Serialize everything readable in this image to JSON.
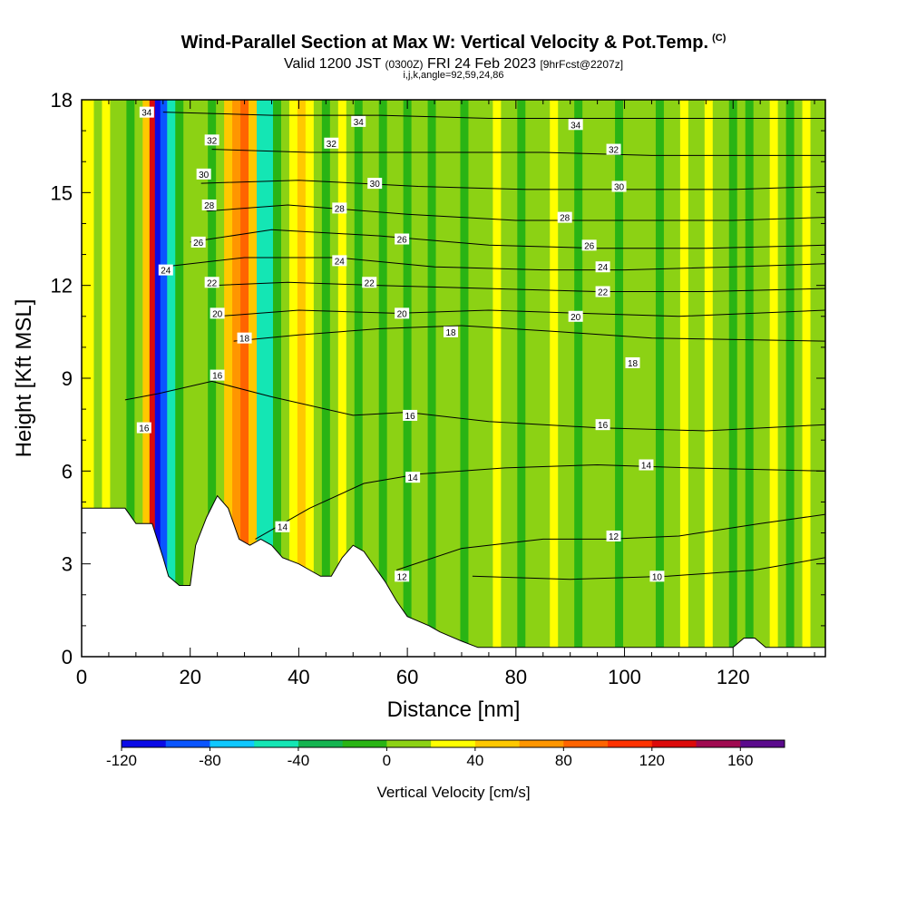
{
  "header": {
    "title": "Wind-Parallel Section at Max W: Vertical Velocity & Pot.Temp.",
    "title_mark": "(C)",
    "valid_prefix": "Valid 1200 JST",
    "valid_zulu": "(0300Z)",
    "valid_date": "FRI 24 Feb 2023",
    "forecast": "[9hrFcst@2207z]",
    "indices": "i,j,k,angle=92,59,24,86"
  },
  "chart_data": {
    "type": "heatmap",
    "xlabel": "Distance [nm]",
    "ylabel": "Height [Kft MSL]",
    "xlim": [
      0,
      137
    ],
    "ylim": [
      0,
      18
    ],
    "x_ticks": [
      0,
      20,
      40,
      60,
      80,
      100,
      120
    ],
    "y_ticks": [
      0,
      3,
      6,
      9,
      12,
      15,
      18
    ],
    "colorbar": {
      "label": "Vertical Velocity [cm/s]",
      "range": [
        -120,
        180
      ],
      "step": 20,
      "tick_labels": [
        "-120",
        "-80",
        "-40",
        "0",
        "40",
        "80",
        "120",
        "160"
      ],
      "tick_values": [
        -120,
        -80,
        -40,
        0,
        40,
        80,
        120,
        160
      ],
      "colors": [
        "#0a0ae6",
        "#0a55ff",
        "#0fc8ff",
        "#14e6b4",
        "#14b450",
        "#29b414",
        "#8cd214",
        "#ffff00",
        "#ffc800",
        "#ff9600",
        "#ff6400",
        "#ff3200",
        "#dc0a0a",
        "#a00a50",
        "#5a0a8c"
      ]
    },
    "w_columns": [
      {
        "x": 1.5,
        "w": 20
      },
      {
        "x": 3,
        "w": 10
      },
      {
        "x": 4.5,
        "w": 20
      },
      {
        "x": 6,
        "w": 5
      },
      {
        "x": 7.5,
        "w": 10
      },
      {
        "x": 9,
        "w": -5
      },
      {
        "x": 10.5,
        "w": 5
      },
      {
        "x": 12,
        "w": 40
      },
      {
        "x": 13,
        "w": 125
      },
      {
        "x": 14,
        "w": -115
      },
      {
        "x": 15,
        "w": -90
      },
      {
        "x": 16.5,
        "w": -45
      },
      {
        "x": 18,
        "w": -5
      },
      {
        "x": 19.5,
        "w": 5
      },
      {
        "x": 21,
        "w": 15
      },
      {
        "x": 22.5,
        "w": 5
      },
      {
        "x": 24,
        "w": -10
      },
      {
        "x": 25.5,
        "w": 10
      },
      {
        "x": 27,
        "w": 45
      },
      {
        "x": 28.5,
        "w": 75
      },
      {
        "x": 30,
        "w": 95
      },
      {
        "x": 31.5,
        "w": 50
      },
      {
        "x": 33,
        "w": -55
      },
      {
        "x": 34.5,
        "w": -45
      },
      {
        "x": 36,
        "w": -10
      },
      {
        "x": 37.5,
        "w": 5
      },
      {
        "x": 39,
        "w": 25
      },
      {
        "x": 40.5,
        "w": 45
      },
      {
        "x": 42,
        "w": 25
      },
      {
        "x": 43.5,
        "w": 5
      },
      {
        "x": 45,
        "w": -5
      },
      {
        "x": 46.5,
        "w": 10
      },
      {
        "x": 48,
        "w": 25
      },
      {
        "x": 49.5,
        "w": 5
      },
      {
        "x": 51,
        "w": -5
      },
      {
        "x": 52.5,
        "w": 10
      },
      {
        "x": 54,
        "w": 5
      },
      {
        "x": 55.5,
        "w": -10
      },
      {
        "x": 57,
        "w": 5
      },
      {
        "x": 58.5,
        "w": 10
      },
      {
        "x": 60,
        "w": -5
      },
      {
        "x": 61.5,
        "w": 5
      },
      {
        "x": 63,
        "w": 10
      },
      {
        "x": 64.5,
        "w": -5
      },
      {
        "x": 66,
        "w": 5
      },
      {
        "x": 67.5,
        "w": 10
      },
      {
        "x": 69,
        "w": 5
      },
      {
        "x": 70.5,
        "w": -5
      },
      {
        "x": 72,
        "w": 5
      },
      {
        "x": 73.5,
        "w": 10
      },
      {
        "x": 75,
        "w": 5
      },
      {
        "x": 76.5,
        "w": 25
      },
      {
        "x": 78,
        "w": 10
      },
      {
        "x": 79.5,
        "w": 5
      },
      {
        "x": 81,
        "w": -5
      },
      {
        "x": 82.5,
        "w": 5
      },
      {
        "x": 84,
        "w": 10
      },
      {
        "x": 85.5,
        "w": 5
      },
      {
        "x": 87,
        "w": 25
      },
      {
        "x": 88.5,
        "w": 10
      },
      {
        "x": 90,
        "w": 5
      },
      {
        "x": 91.5,
        "w": -5
      },
      {
        "x": 93,
        "w": 5
      },
      {
        "x": 94.5,
        "w": 10
      },
      {
        "x": 96,
        "w": 5
      },
      {
        "x": 97.5,
        "w": 5
      },
      {
        "x": 99,
        "w": -5
      },
      {
        "x": 100.5,
        "w": 10
      },
      {
        "x": 102,
        "w": 5
      },
      {
        "x": 103.5,
        "w": 5
      },
      {
        "x": 105,
        "w": 10
      },
      {
        "x": 106.5,
        "w": -5
      },
      {
        "x": 108,
        "w": 5
      },
      {
        "x": 109.5,
        "w": 10
      },
      {
        "x": 111,
        "w": 25
      },
      {
        "x": 112.5,
        "w": 10
      },
      {
        "x": 114,
        "w": 5
      },
      {
        "x": 115.5,
        "w": 25
      },
      {
        "x": 117,
        "w": 10
      },
      {
        "x": 118.5,
        "w": 5
      },
      {
        "x": 120,
        "w": -5
      },
      {
        "x": 121.5,
        "w": 5
      },
      {
        "x": 123,
        "w": -20
      },
      {
        "x": 124.5,
        "w": 5
      },
      {
        "x": 126,
        "w": 10
      },
      {
        "x": 127.5,
        "w": 25
      },
      {
        "x": 129,
        "w": 5
      },
      {
        "x": 130.5,
        "w": -5
      },
      {
        "x": 132,
        "w": 10
      },
      {
        "x": 133.5,
        "w": 25
      },
      {
        "x": 135,
        "w": 5
      },
      {
        "x": 136.5,
        "w": 10
      }
    ],
    "terrain": [
      [
        0,
        4.8
      ],
      [
        8,
        4.8
      ],
      [
        10,
        4.3
      ],
      [
        13,
        4.3
      ],
      [
        15,
        3.2
      ],
      [
        16,
        2.6
      ],
      [
        18,
        2.3
      ],
      [
        20,
        2.3
      ],
      [
        21,
        3.6
      ],
      [
        23,
        4.5
      ],
      [
        25,
        5.2
      ],
      [
        27,
        4.8
      ],
      [
        29,
        3.8
      ],
      [
        31,
        3.6
      ],
      [
        33,
        3.8
      ],
      [
        35,
        3.6
      ],
      [
        37,
        3.2
      ],
      [
        40,
        3.0
      ],
      [
        42,
        2.8
      ],
      [
        44,
        2.6
      ],
      [
        46,
        2.6
      ],
      [
        48,
        3.2
      ],
      [
        50,
        3.6
      ],
      [
        52,
        3.4
      ],
      [
        54,
        2.9
      ],
      [
        56,
        2.4
      ],
      [
        58,
        1.8
      ],
      [
        60,
        1.3
      ],
      [
        64,
        1.0
      ],
      [
        66,
        0.8
      ],
      [
        70,
        0.5
      ],
      [
        73,
        0.3
      ],
      [
        120,
        0.3
      ],
      [
        122,
        0.6
      ],
      [
        124,
        0.6
      ],
      [
        126,
        0.3
      ],
      [
        137,
        0.3
      ]
    ],
    "isentropes": [
      {
        "theta": 10,
        "y_at": [
          [
            72,
            2.6
          ],
          [
            90,
            2.5
          ],
          [
            108,
            2.6
          ],
          [
            124,
            2.8
          ],
          [
            137,
            3.2
          ]
        ]
      },
      {
        "theta": 12,
        "y_at": [
          [
            58,
            2.8
          ],
          [
            70,
            3.5
          ],
          [
            85,
            3.8
          ],
          [
            97,
            3.8
          ],
          [
            110,
            3.9
          ],
          [
            125,
            4.3
          ],
          [
            137,
            4.6
          ]
        ]
      },
      {
        "theta": 14,
        "y_at": [
          [
            32,
            3.8
          ],
          [
            42,
            4.8
          ],
          [
            52,
            5.6
          ],
          [
            62,
            5.9
          ],
          [
            78,
            6.1
          ],
          [
            95,
            6.2
          ],
          [
            112,
            6.1
          ],
          [
            137,
            6.0
          ]
        ]
      },
      {
        "theta": 16,
        "y_at": [
          [
            8,
            8.3
          ],
          [
            14,
            8.5
          ],
          [
            24,
            8.9
          ],
          [
            35,
            8.4
          ],
          [
            50,
            7.8
          ],
          [
            60,
            7.9
          ],
          [
            75,
            7.6
          ],
          [
            95,
            7.4
          ],
          [
            115,
            7.3
          ],
          [
            137,
            7.5
          ]
        ]
      },
      {
        "theta": 18,
        "y_at": [
          [
            28,
            10.2
          ],
          [
            40,
            10.4
          ],
          [
            55,
            10.6
          ],
          [
            70,
            10.7
          ],
          [
            88,
            10.5
          ],
          [
            105,
            10.3
          ],
          [
            137,
            10.2
          ]
        ]
      },
      {
        "theta": 20,
        "y_at": [
          [
            25,
            11.0
          ],
          [
            40,
            11.2
          ],
          [
            58,
            11.1
          ],
          [
            75,
            11.2
          ],
          [
            92,
            11.1
          ],
          [
            110,
            11.0
          ],
          [
            137,
            11.2
          ]
        ]
      },
      {
        "theta": 22,
        "y_at": [
          [
            24,
            12.0
          ],
          [
            38,
            12.1
          ],
          [
            55,
            12.0
          ],
          [
            75,
            11.9
          ],
          [
            95,
            11.8
          ],
          [
            115,
            11.8
          ],
          [
            137,
            11.9
          ]
        ]
      },
      {
        "theta": 24,
        "y_at": [
          [
            15,
            12.6
          ],
          [
            30,
            12.9
          ],
          [
            47,
            12.9
          ],
          [
            65,
            12.6
          ],
          [
            85,
            12.5
          ],
          [
            100,
            12.5
          ],
          [
            120,
            12.6
          ],
          [
            137,
            12.7
          ]
        ]
      },
      {
        "theta": 26,
        "y_at": [
          [
            20,
            13.4
          ],
          [
            35,
            13.8
          ],
          [
            55,
            13.6
          ],
          [
            75,
            13.3
          ],
          [
            95,
            13.2
          ],
          [
            115,
            13.2
          ],
          [
            137,
            13.3
          ]
        ]
      },
      {
        "theta": 28,
        "y_at": [
          [
            23,
            14.4
          ],
          [
            38,
            14.6
          ],
          [
            60,
            14.3
          ],
          [
            80,
            14.1
          ],
          [
            100,
            14.1
          ],
          [
            120,
            14.1
          ],
          [
            137,
            14.2
          ]
        ]
      },
      {
        "theta": 30,
        "y_at": [
          [
            22,
            15.3
          ],
          [
            40,
            15.4
          ],
          [
            62,
            15.2
          ],
          [
            82,
            15.1
          ],
          [
            102,
            15.1
          ],
          [
            120,
            15.1
          ],
          [
            137,
            15.2
          ]
        ]
      },
      {
        "theta": 32,
        "y_at": [
          [
            24,
            16.4
          ],
          [
            42,
            16.3
          ],
          [
            65,
            16.3
          ],
          [
            85,
            16.3
          ],
          [
            105,
            16.2
          ],
          [
            125,
            16.2
          ],
          [
            137,
            16.2
          ]
        ]
      },
      {
        "theta": 34,
        "y_at": [
          [
            15,
            17.6
          ],
          [
            35,
            17.5
          ],
          [
            55,
            17.5
          ],
          [
            75,
            17.4
          ],
          [
            95,
            17.4
          ],
          [
            115,
            17.4
          ],
          [
            137,
            17.4
          ]
        ]
      }
    ],
    "contour_labels": [
      {
        "text": "34",
        "x": 12,
        "y": 17.6
      },
      {
        "text": "34",
        "x": 51,
        "y": 17.3
      },
      {
        "text": "34",
        "x": 91,
        "y": 17.2
      },
      {
        "text": "32",
        "x": 24,
        "y": 16.7
      },
      {
        "text": "32",
        "x": 46,
        "y": 16.6
      },
      {
        "text": "32",
        "x": 98,
        "y": 16.4
      },
      {
        "text": "30",
        "x": 22.5,
        "y": 15.6
      },
      {
        "text": "30",
        "x": 54,
        "y": 15.3
      },
      {
        "text": "30",
        "x": 99,
        "y": 15.2
      },
      {
        "text": "28",
        "x": 23.5,
        "y": 14.6
      },
      {
        "text": "28",
        "x": 47.5,
        "y": 14.5
      },
      {
        "text": "28",
        "x": 89,
        "y": 14.2
      },
      {
        "text": "26",
        "x": 21.5,
        "y": 13.4
      },
      {
        "text": "26",
        "x": 59,
        "y": 13.5
      },
      {
        "text": "26",
        "x": 93.5,
        "y": 13.3
      },
      {
        "text": "24",
        "x": 15.5,
        "y": 12.5
      },
      {
        "text": "24",
        "x": 47.5,
        "y": 12.8
      },
      {
        "text": "24",
        "x": 96,
        "y": 12.6
      },
      {
        "text": "22",
        "x": 24,
        "y": 12.1
      },
      {
        "text": "22",
        "x": 53,
        "y": 12.1
      },
      {
        "text": "22",
        "x": 96,
        "y": 11.8
      },
      {
        "text": "20",
        "x": 25,
        "y": 11.1
      },
      {
        "text": "20",
        "x": 59,
        "y": 11.1
      },
      {
        "text": "20",
        "x": 91,
        "y": 11.0
      },
      {
        "text": "18",
        "x": 30,
        "y": 10.3
      },
      {
        "text": "18",
        "x": 68,
        "y": 10.5
      },
      {
        "text": "18",
        "x": 101.5,
        "y": 9.5
      },
      {
        "text": "16",
        "x": 25,
        "y": 9.1
      },
      {
        "text": "16",
        "x": 60.5,
        "y": 7.8
      },
      {
        "text": "16",
        "x": 96,
        "y": 7.5
      },
      {
        "text": "16",
        "x": 11.5,
        "y": 7.4
      },
      {
        "text": "14",
        "x": 37,
        "y": 4.2
      },
      {
        "text": "14",
        "x": 61,
        "y": 5.8
      },
      {
        "text": "14",
        "x": 104,
        "y": 6.2
      },
      {
        "text": "12",
        "x": 59,
        "y": 2.6
      },
      {
        "text": "12",
        "x": 98,
        "y": 3.9
      },
      {
        "text": "10",
        "x": 106,
        "y": 2.6
      }
    ]
  }
}
